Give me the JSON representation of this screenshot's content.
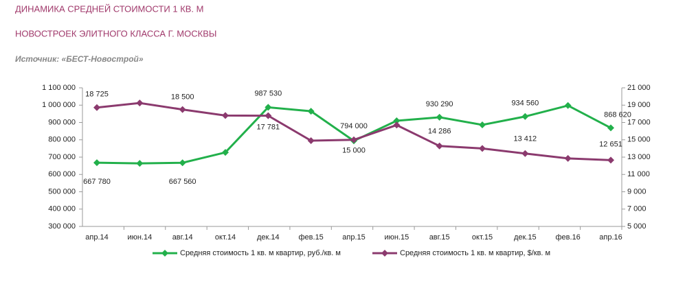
{
  "chart_data": {
    "type": "line",
    "title": "ДИНАМИКА СРЕДНЕЙ СТОИМОСТИ 1 КВ. М",
    "subtitle": "НОВОСТРОЕК ЭЛИТНОГО КЛАССА Г. МОСКВЫ",
    "source": "Источник: «БЕСТ-Новострой»",
    "categories": [
      "апр.14",
      "июн.14",
      "авг.14",
      "окт.14",
      "дек.14",
      "фев.15",
      "апр.15",
      "июн.15",
      "авг.15",
      "окт.15",
      "дек.15",
      "фев.16",
      "апр.16"
    ],
    "series": [
      {
        "name": "Средняя стоимость 1 кв. м квартир, руб./кв. м",
        "color": "#22b04b",
        "axis": "y",
        "values": [
          667780,
          664000,
          667560,
          727000,
          987530,
          965000,
          794000,
          910000,
          930290,
          886000,
          934560,
          998000,
          868620
        ],
        "value_labels": [
          "667 780",
          null,
          "667 560",
          null,
          "987 530",
          null,
          "794 000",
          null,
          "930 290",
          null,
          "934 560",
          null,
          "868 620"
        ]
      },
      {
        "name": "Средняя стоимость 1 кв. м квартир, $/кв. м",
        "color": "#8b3a6e",
        "axis": "y2",
        "values": [
          18725,
          19250,
          18500,
          17800,
          17781,
          14900,
          15000,
          16700,
          14286,
          14000,
          13412,
          12850,
          12651
        ],
        "value_labels": [
          "18 725",
          null,
          "18 500",
          null,
          "17 781",
          null,
          "15 000",
          null,
          "14 286",
          null,
          "13 412",
          null,
          "12 651"
        ]
      }
    ],
    "ylim": [
      300000,
      1100000
    ],
    "yticks": [
      {
        "value": 300000,
        "label": "300 000"
      },
      {
        "value": 400000,
        "label": "400 000"
      },
      {
        "value": 500000,
        "label": "500 000"
      },
      {
        "value": 600000,
        "label": "600 000"
      },
      {
        "value": 700000,
        "label": "700 000"
      },
      {
        "value": 800000,
        "label": "800 000"
      },
      {
        "value": 900000,
        "label": "900 000"
      },
      {
        "value": 1000000,
        "label": "1 000 000"
      },
      {
        "value": 1100000,
        "label": "1 100 000"
      }
    ],
    "y2lim": [
      5000,
      21000
    ],
    "y2ticks": [
      {
        "value": 5000,
        "label": "5 000"
      },
      {
        "value": 7000,
        "label": "7 000"
      },
      {
        "value": 9000,
        "label": "9 000"
      },
      {
        "value": 11000,
        "label": "11 000"
      },
      {
        "value": 13000,
        "label": "13 000"
      },
      {
        "value": 15000,
        "label": "15 000"
      },
      {
        "value": 17000,
        "label": "17 000"
      },
      {
        "value": 19000,
        "label": "19 000"
      },
      {
        "value": 21000,
        "label": "21 000"
      }
    ],
    "legend": "bottom"
  }
}
